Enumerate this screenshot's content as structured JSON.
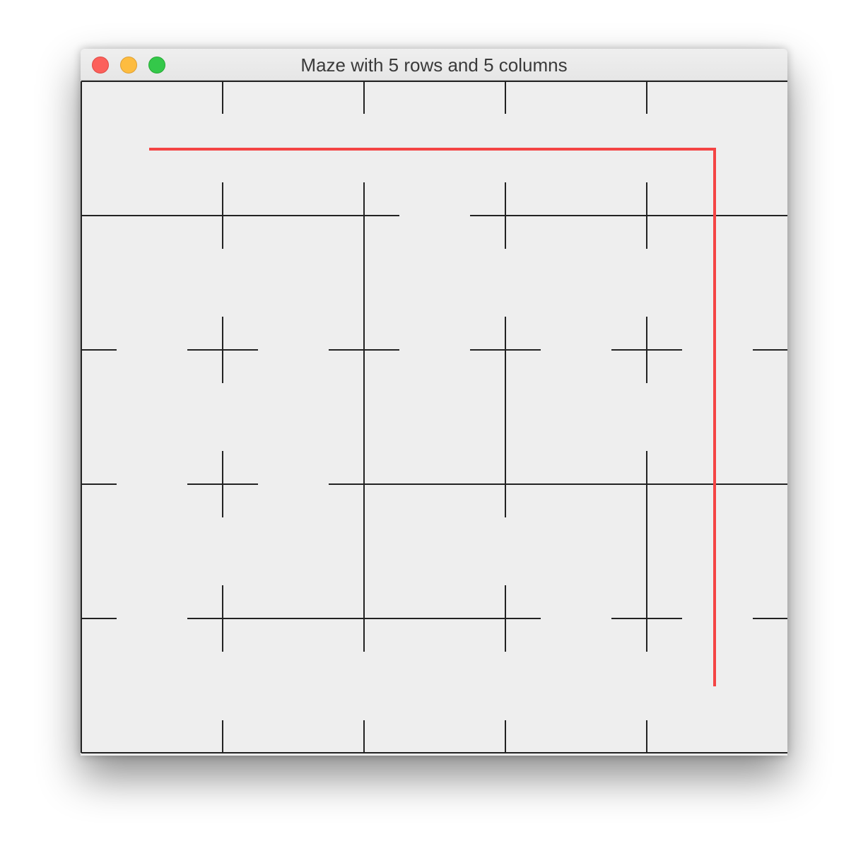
{
  "window": {
    "title": "Maze with 5 rows and 5 columns",
    "controls": [
      "close-button",
      "minimize-button",
      "zoom-button"
    ]
  },
  "maze": {
    "rows": 5,
    "columns": 5,
    "wall_color": "#222222",
    "path_color": "#f44444",
    "horizontal_walls": [
      [
        1,
        1,
        1,
        1,
        1
      ],
      [
        1,
        1,
        0,
        1,
        1
      ],
      [
        0,
        0,
        0,
        0,
        0
      ],
      [
        0,
        0,
        1,
        1,
        1
      ],
      [
        0,
        1,
        1,
        0,
        0
      ],
      [
        1,
        1,
        1,
        1,
        1
      ]
    ],
    "vertical_walls": [
      [
        1,
        0,
        0,
        0,
        0,
        0
      ],
      [
        1,
        0,
        1,
        0,
        0,
        0
      ],
      [
        1,
        0,
        1,
        1,
        0,
        0
      ],
      [
        1,
        0,
        1,
        0,
        1,
        0
      ],
      [
        1,
        0,
        0,
        0,
        0,
        0
      ]
    ],
    "solution_path": [
      {
        "row": 0,
        "col": 0
      },
      {
        "row": 0,
        "col": 4
      },
      {
        "row": 4,
        "col": 4
      }
    ]
  }
}
